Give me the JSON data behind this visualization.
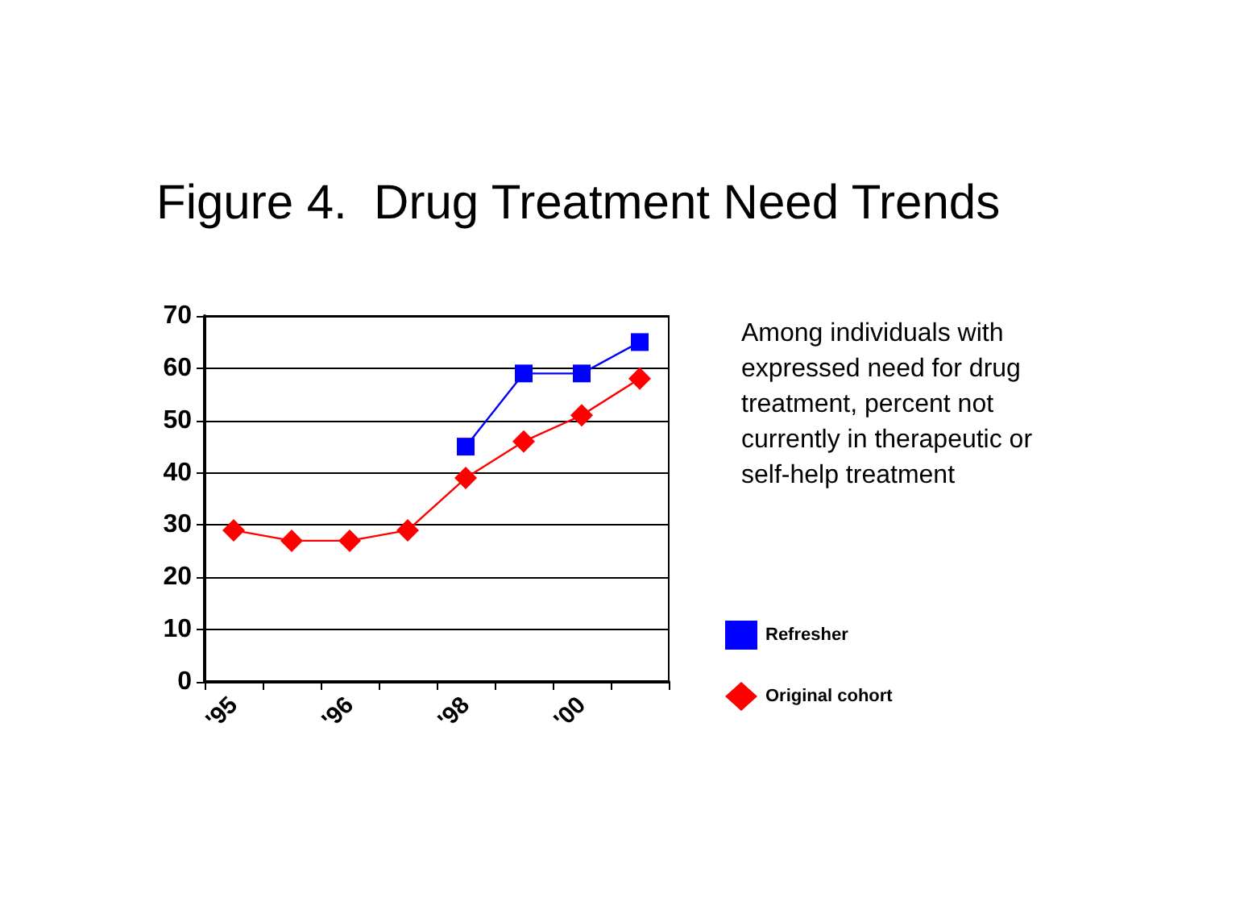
{
  "chart_data": {
    "type": "line",
    "title": "Figure 4.  Drug Treatment Need Trends",
    "annotations": [
      "Among individuals with expressed need for drug treatment, percent not currently in therapeutic or self-help treatment"
    ],
    "categories": [
      "'95",
      null,
      "'96",
      null,
      "'98",
      null,
      "'00",
      null
    ],
    "ylim": [
      0,
      70
    ],
    "yticks": [
      0,
      10,
      20,
      30,
      40,
      50,
      60,
      70
    ],
    "grid": "y",
    "legend": "right",
    "series": [
      {
        "name": "Refresher",
        "color": "#0000ff",
        "marker": "square",
        "values": [
          null,
          null,
          null,
          null,
          45,
          59,
          59,
          65
        ]
      },
      {
        "name": "Original cohort",
        "color": "#ff0000",
        "marker": "diamond",
        "values": [
          29,
          27,
          27,
          29,
          39,
          46,
          51,
          58
        ]
      }
    ]
  }
}
